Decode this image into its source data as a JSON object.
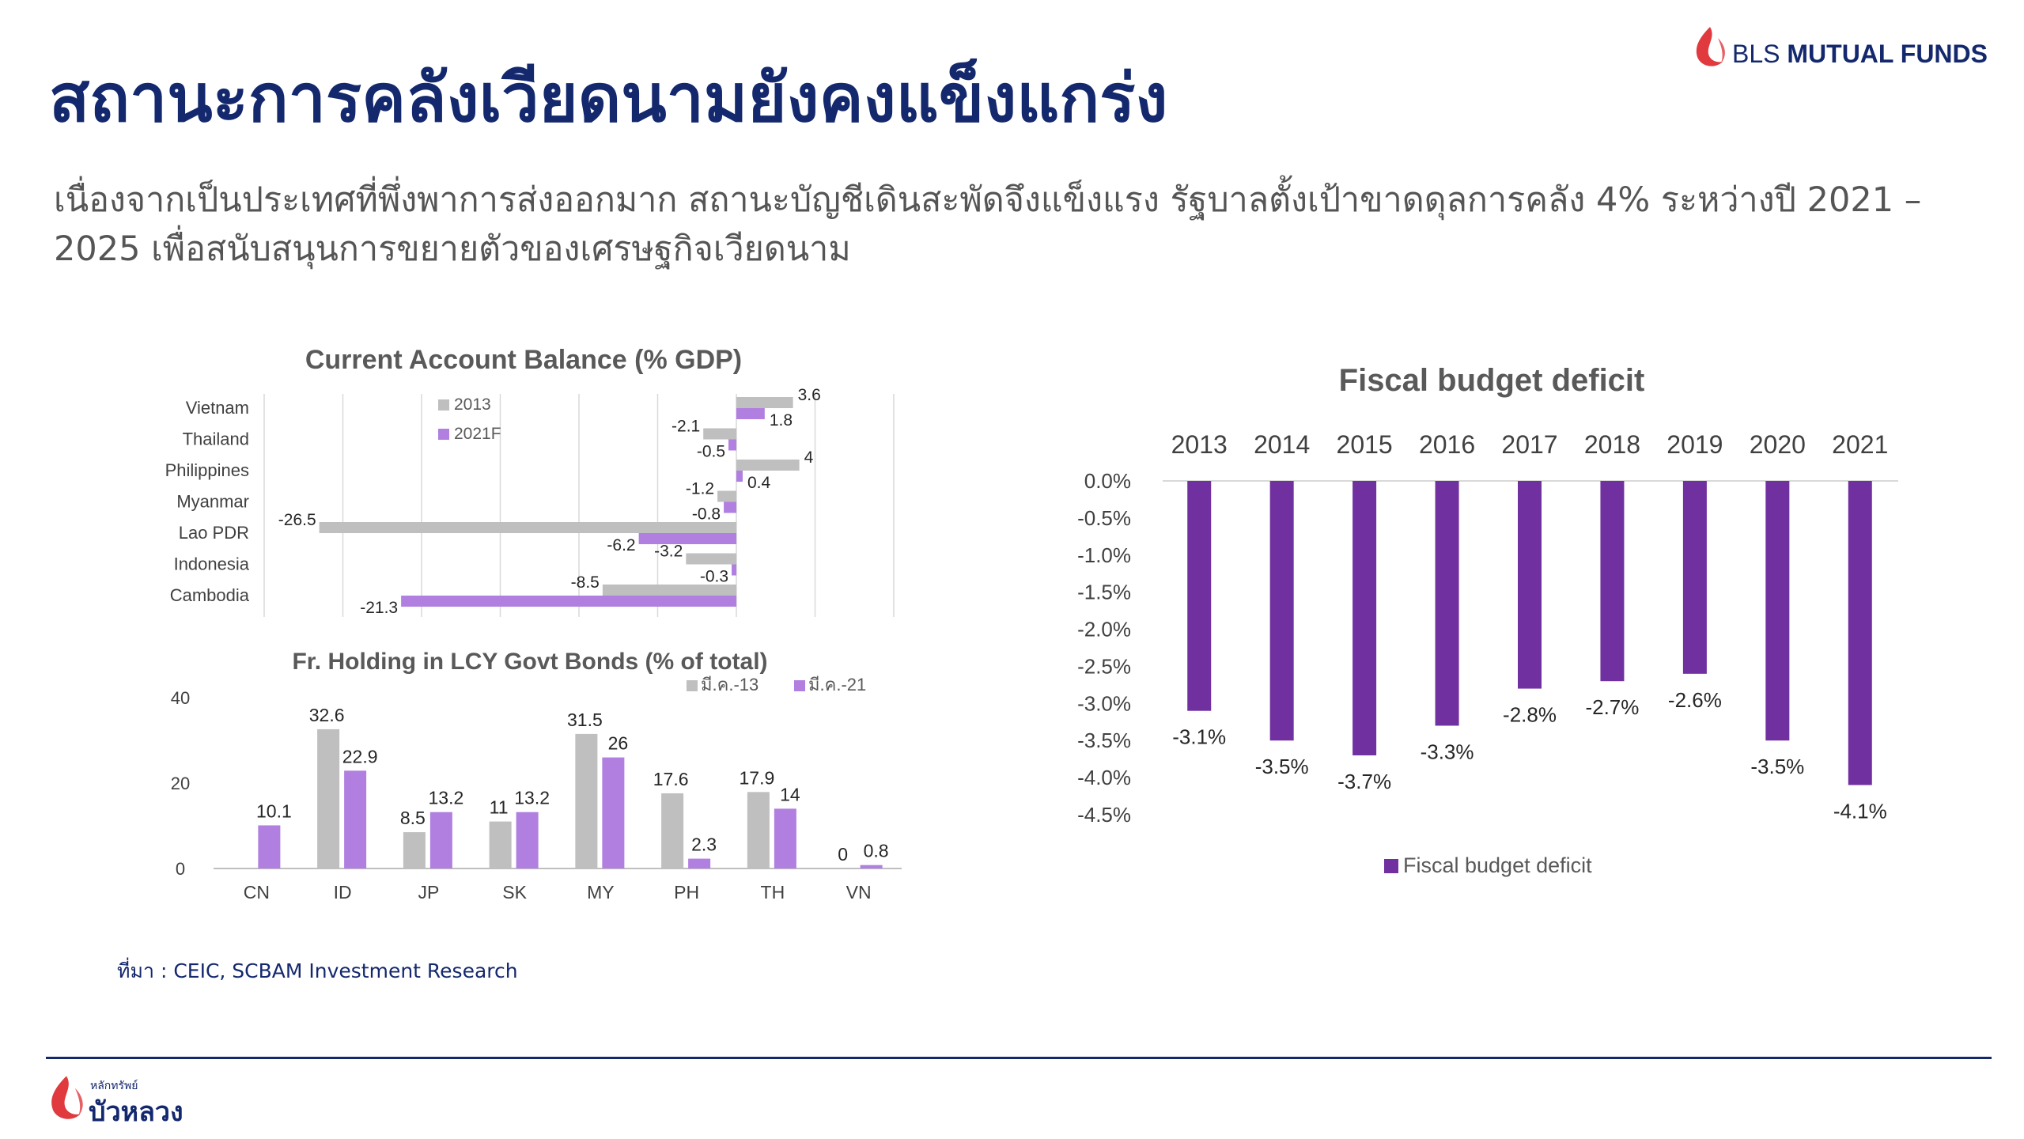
{
  "slide": {
    "title": "สถานะการคลังเวียดนามยังคงแข็งแกร่ง",
    "subtitle": "เนื่องจากเป็นประเทศที่พึ่งพาการส่งออกมาก สถานะบัญชีเดินสะพัดจึงแข็งแรง รัฐบาลตั้งเป้าขาดดุลการคลัง 4% ระหว่างปี 2021 – 2025 เพื่อสนับสนุนการขยายตัวของเศรษฐกิจเวียดนาม",
    "source": "ที่มา : CEIC, SCBAM Investment Research"
  },
  "brand": {
    "top_prefix": "BLS",
    "top_name": "MUTUAL FUNDS",
    "bottom_small": "หลักทรัพย์",
    "bottom_big": "บัวหลวง",
    "color": "#e03a3e"
  },
  "chart_data": [
    {
      "type": "bar",
      "orientation": "horizontal",
      "title": "Current Account Balance (% GDP)",
      "categories": [
        "Vietnam",
        "Thailand",
        "Philippines",
        "Myanmar",
        "Lao PDR",
        "Indonesia",
        "Cambodia"
      ],
      "series": [
        {
          "name": "2013",
          "color": "#bfbfbf",
          "values": [
            3.6,
            -2.1,
            4,
            -1.2,
            -26.5,
            -3.2,
            -8.5
          ]
        },
        {
          "name": "2021F",
          "color": "#b07fe0",
          "values": [
            1.8,
            -0.5,
            0.4,
            -0.8,
            -6.2,
            -0.3,
            -21.3
          ]
        }
      ],
      "xlim": [
        -30,
        10
      ],
      "xticks": [
        -30,
        -25,
        -20,
        -15,
        -10,
        -5,
        0,
        5,
        10
      ],
      "legend": "top-center",
      "grid": true
    },
    {
      "type": "bar",
      "title": "Fr. Holding in LCY Govt Bonds (% of total)",
      "categories": [
        "CN",
        "ID",
        "JP",
        "SK",
        "MY",
        "PH",
        "TH",
        "VN"
      ],
      "series": [
        {
          "name": "มี.ค.-13",
          "color": "#bfbfbf",
          "values": [
            null,
            32.6,
            8.5,
            11,
            31.5,
            17.6,
            17.9,
            0
          ]
        },
        {
          "name": "มี.ค.-21",
          "color": "#b07fe0",
          "values": [
            10.1,
            22.9,
            13.2,
            13.2,
            26,
            2.3,
            14,
            0.8
          ]
        }
      ],
      "ylim": [
        0,
        40
      ],
      "yticks": [
        0,
        20,
        40
      ],
      "legend": "top-right",
      "grid": false
    },
    {
      "type": "bar",
      "title": "Fiscal budget deficit",
      "categories": [
        "2013",
        "2014",
        "2015",
        "2016",
        "2017",
        "2018",
        "2019",
        "2020",
        "2021"
      ],
      "series": [
        {
          "name": "Fiscal budget deficit",
          "color": "#7030a0",
          "values": [
            -3.1,
            -3.5,
            -3.7,
            -3.3,
            -2.8,
            -2.7,
            -2.6,
            -3.5,
            -4.1
          ]
        }
      ],
      "ylim": [
        -4.5,
        0
      ],
      "yticks": [
        "0.0%",
        "-0.5%",
        "-1.0%",
        "-1.5%",
        "-2.0%",
        "-2.5%",
        "-3.0%",
        "-3.5%",
        "-4.0%",
        "-4.5%"
      ],
      "data_labels": [
        "-3.1%",
        "-3.5%",
        "-3.7%",
        "-3.3%",
        "-2.8%",
        "-2.7%",
        "-2.6%",
        "-3.5%",
        "-4.1%"
      ],
      "legend": "bottom",
      "grid": false
    }
  ]
}
